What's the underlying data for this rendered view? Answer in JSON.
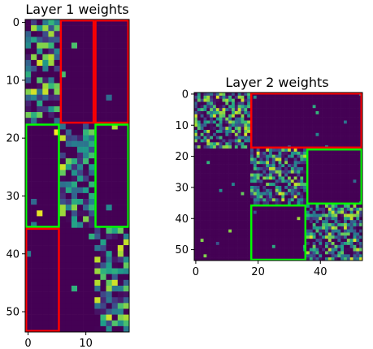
{
  "chart_data": [
    {
      "type": "heatmap",
      "title": "Layer 1 weights",
      "rows": 54,
      "cols": 18,
      "colormap": "viridis",
      "x_ticks": [
        0,
        10
      ],
      "y_ticks": [
        0,
        10,
        20,
        30,
        40,
        50
      ],
      "boxes": [
        {
          "color": "#ff0000",
          "row_start": 0,
          "row_end": 17,
          "col_start": 6,
          "col_end": 12
        },
        {
          "color": "#ff0000",
          "row_start": 0,
          "row_end": 17,
          "col_start": 12,
          "col_end": 18
        },
        {
          "color": "#00ff00",
          "row_start": 18,
          "row_end": 35,
          "col_start": 0,
          "col_end": 6
        },
        {
          "color": "#00ff00",
          "row_start": 18,
          "row_end": 35,
          "col_start": 12,
          "col_end": 18
        },
        {
          "color": "#ff0000",
          "row_start": 36,
          "row_end": 53,
          "col_start": 0,
          "col_end": 6
        }
      ],
      "active_blocks": [
        {
          "row_start": 0,
          "row_end": 17,
          "col_start": 0,
          "col_end": 6
        },
        {
          "row_start": 18,
          "row_end": 35,
          "col_start": 6,
          "col_end": 12
        },
        {
          "row_start": 36,
          "row_end": 53,
          "col_start": 12,
          "col_end": 18
        }
      ]
    },
    {
      "type": "heatmap",
      "title": "Layer 2 weights",
      "rows": 54,
      "cols": 54,
      "colormap": "viridis",
      "x_ticks": [
        0,
        20,
        40
      ],
      "y_ticks": [
        0,
        10,
        20,
        30,
        40,
        50
      ],
      "boxes": [
        {
          "color": "#ff0000",
          "row_start": 0,
          "row_end": 17,
          "col_start": 18,
          "col_end": 54
        },
        {
          "color": "#00ff00",
          "row_start": 18,
          "row_end": 35,
          "col_start": 36,
          "col_end": 54
        },
        {
          "color": "#00ff00",
          "row_start": 36,
          "row_end": 54,
          "col_start": 18,
          "col_end": 36
        }
      ],
      "active_blocks": [
        {
          "row_start": 0,
          "row_end": 17,
          "col_start": 0,
          "col_end": 18
        },
        {
          "row_start": 18,
          "row_end": 35,
          "col_start": 18,
          "col_end": 36
        },
        {
          "row_start": 36,
          "row_end": 53,
          "col_start": 36,
          "col_end": 54
        }
      ]
    }
  ]
}
